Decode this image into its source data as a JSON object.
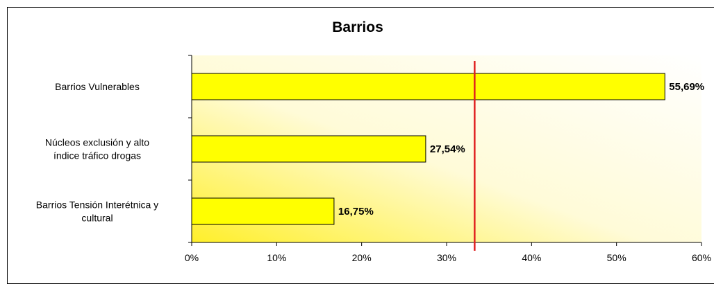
{
  "chart_data": {
    "type": "bar",
    "orientation": "horizontal",
    "title": "Barrios",
    "categories": [
      "Barrios Vulnerables",
      [
        "Núcleos exclusión y alto",
        "índice tráfico drogas"
      ],
      [
        "Barrios Tensión Interétnica y",
        "cultural"
      ]
    ],
    "values": [
      55.69,
      27.54,
      16.75
    ],
    "data_labels": [
      "55,69%",
      "27,54%",
      "16,75%"
    ],
    "xlim": [
      0,
      60
    ],
    "xticks": [
      "0%",
      "10%",
      "20%",
      "30%",
      "40%",
      "50%",
      "60%"
    ],
    "reference_line": 33.3,
    "colors": {
      "bar_fill": "#ffff00",
      "bar_stroke": "#000000",
      "reference_line": "#e0201f",
      "plot_gradient_start": "#ffef2a",
      "plot_gradient_end": "#ffffff"
    }
  }
}
